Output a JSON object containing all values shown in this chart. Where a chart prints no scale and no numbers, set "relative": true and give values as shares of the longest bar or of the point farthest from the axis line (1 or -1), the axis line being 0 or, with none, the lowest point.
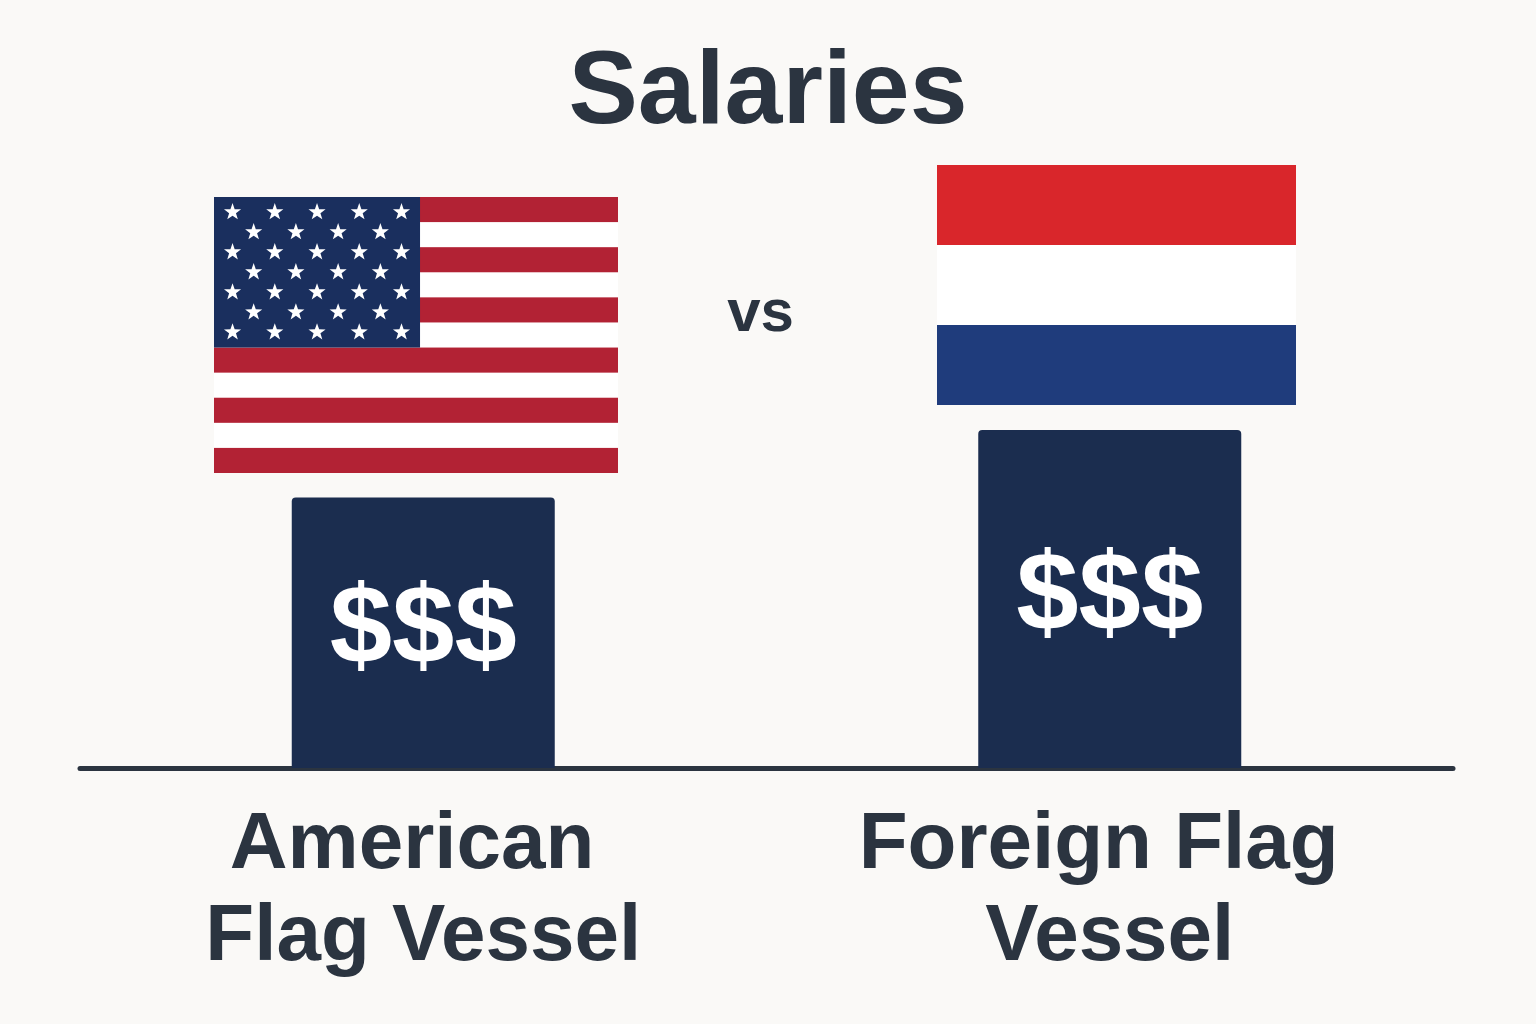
{
  "chart_data": {
    "type": "bar",
    "title": "Salaries",
    "categories": [
      "American Flag Vessel",
      "Foreign Flag Vessel"
    ],
    "values": [
      0.8,
      1
    ],
    "color": "#1b2d4f",
    "relative": true,
    "annotations": [
      "vs",
      "$$$",
      "$$$"
    ],
    "grid": false
  }
}
